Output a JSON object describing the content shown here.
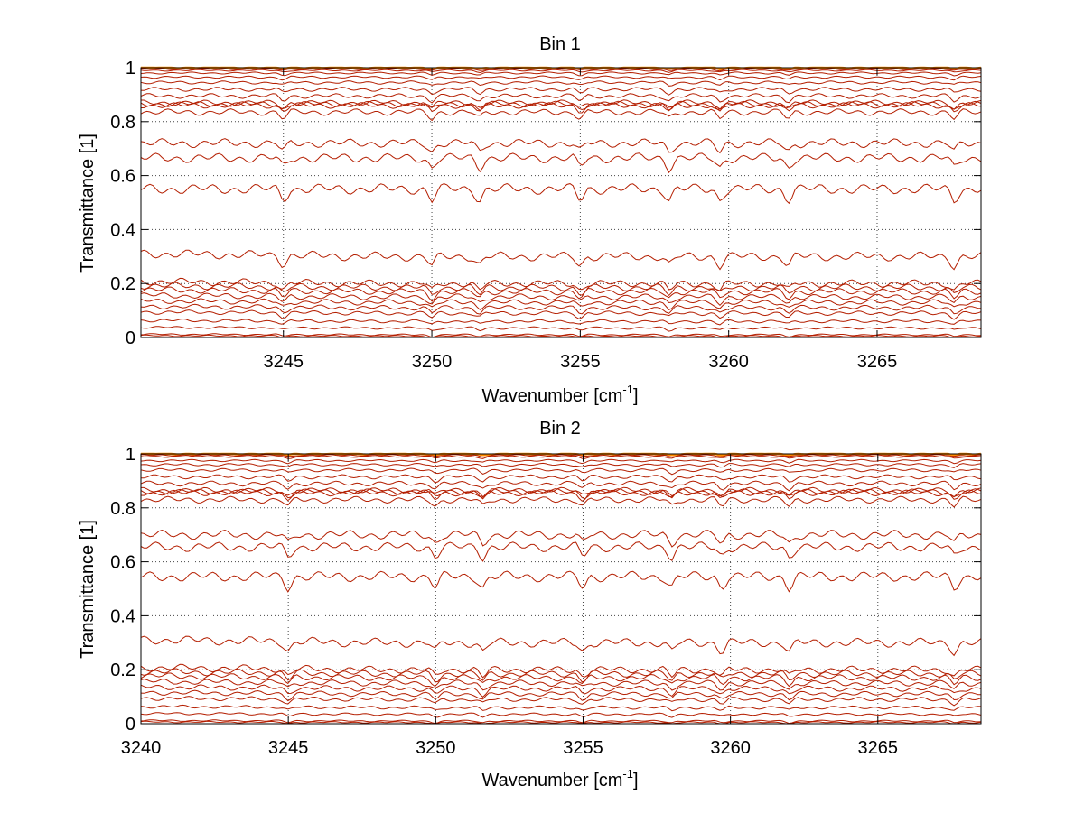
{
  "chart_data": [
    {
      "type": "line",
      "title": "Bin 1",
      "xlabel": "Wavenumber [cm",
      "xlabel_sup": "-1",
      "xlabel_close": "]",
      "ylabel": "Transmittance [1]",
      "xlim": [
        3240.2,
        3268.5
      ],
      "ylim": [
        0,
        1
      ],
      "xticks": [
        3245,
        3250,
        3255,
        3260,
        3265
      ],
      "yticks": [
        0,
        0.2,
        0.4,
        0.6,
        0.8,
        1
      ],
      "ytick_labels": [
        "0",
        "0.2",
        "0.4",
        "0.6",
        "0.8",
        "1"
      ],
      "grid": true,
      "line_color": "#b41e00",
      "top_color": "#ff8c00",
      "series_levels": [
        1.0,
        0.995,
        0.99,
        0.98,
        0.965,
        0.945,
        0.92,
        0.895,
        0.87,
        0.865,
        0.86,
        0.835,
        0.72,
        0.665,
        0.55,
        0.3,
        0.2,
        0.185,
        0.17,
        0.15,
        0.13,
        0.11,
        0.09,
        0.06,
        0.035,
        0.01,
        0.005
      ]
    },
    {
      "type": "line",
      "title": "Bin 2",
      "xlabel": "Wavenumber [cm",
      "xlabel_sup": "-1",
      "xlabel_close": "]",
      "ylabel": "Transmittance [1]",
      "xlim": [
        3240,
        3268.5
      ],
      "ylim": [
        0,
        1
      ],
      "xticks": [
        3240,
        3245,
        3250,
        3255,
        3260,
        3265
      ],
      "yticks": [
        0,
        0.2,
        0.4,
        0.6,
        0.8,
        1
      ],
      "ytick_labels": [
        "0",
        "0.2",
        "0.4",
        "0.6",
        "0.8",
        "1"
      ],
      "grid": true,
      "line_color": "#b41e00",
      "top_color": "#ff8c00",
      "series_levels": [
        1.0,
        0.995,
        0.99,
        0.975,
        0.96,
        0.94,
        0.915,
        0.89,
        0.865,
        0.86,
        0.855,
        0.83,
        0.7,
        0.655,
        0.545,
        0.3,
        0.2,
        0.185,
        0.17,
        0.15,
        0.13,
        0.11,
        0.09,
        0.06,
        0.035,
        0.01,
        0.005
      ]
    }
  ]
}
